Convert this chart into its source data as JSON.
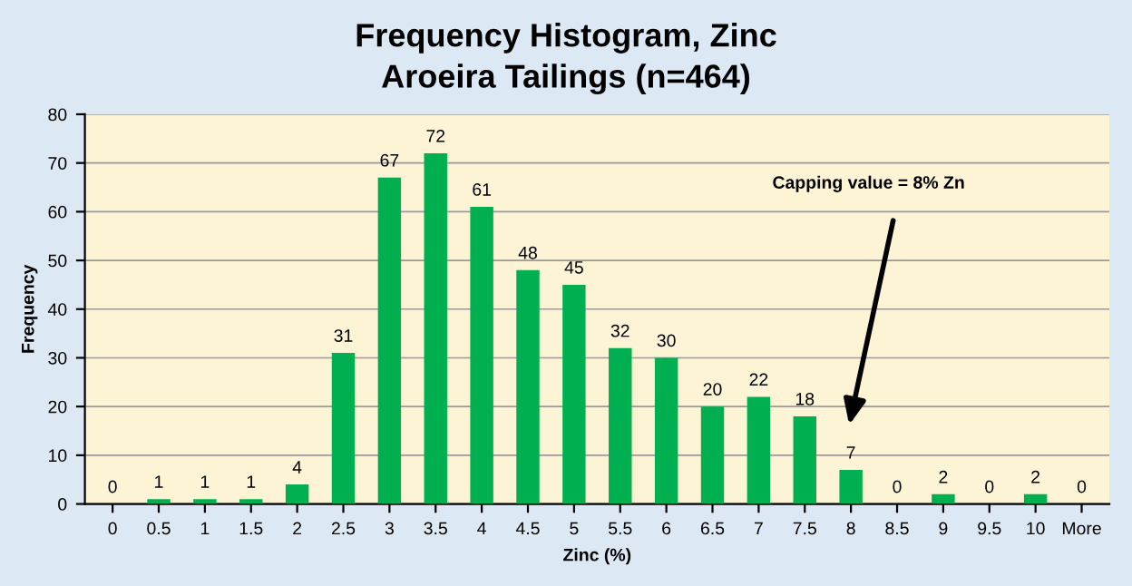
{
  "chart_data": {
    "type": "bar",
    "title": "Frequency Histogram, Zinc",
    "subtitle": "Aroeira Tailings (n=464)",
    "xlabel": "Zinc (%)",
    "ylabel": "Frequency",
    "categories": [
      "0",
      "0.5",
      "1",
      "1.5",
      "2",
      "2.5",
      "3",
      "3.5",
      "4",
      "4.5",
      "5",
      "5.5",
      "6",
      "6.5",
      "7",
      "7.5",
      "8",
      "8.5",
      "9",
      "9.5",
      "10",
      "More"
    ],
    "values": [
      0,
      1,
      1,
      1,
      4,
      31,
      67,
      72,
      61,
      48,
      45,
      32,
      30,
      20,
      22,
      18,
      7,
      0,
      2,
      0,
      2,
      0
    ],
    "color": "#00b050",
    "data_labels": true,
    "ylim": [
      0,
      80
    ],
    "yticks": [
      0,
      10,
      20,
      30,
      40,
      50,
      60,
      70,
      80
    ],
    "grid": "y",
    "annotations": [
      "Capping value = 8% Zn"
    ]
  }
}
